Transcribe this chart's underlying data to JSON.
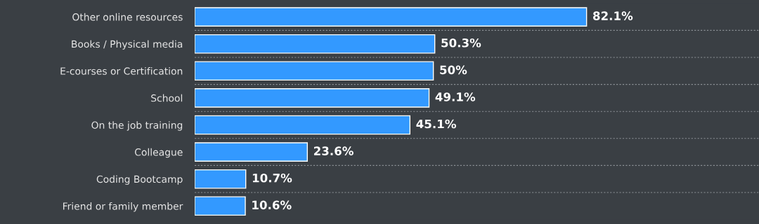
{
  "chart_data": {
    "type": "bar",
    "orientation": "horizontal",
    "categories": [
      "Other online resources",
      "Books / Physical media",
      "E-courses or Certification",
      "School",
      "On the job training",
      "Colleague",
      "Coding Bootcamp",
      "Friend or family member"
    ],
    "values": [
      82.1,
      50.3,
      50,
      49.1,
      45.1,
      23.6,
      10.7,
      10.6
    ],
    "value_labels": [
      "82.1%",
      "50.3%",
      "50%",
      "49.1%",
      "45.1%",
      "23.6%",
      "10.7%",
      "10.6%"
    ],
    "color": "#3399ff",
    "grid": "y",
    "tick_labels": "y",
    "legend": false
  }
}
